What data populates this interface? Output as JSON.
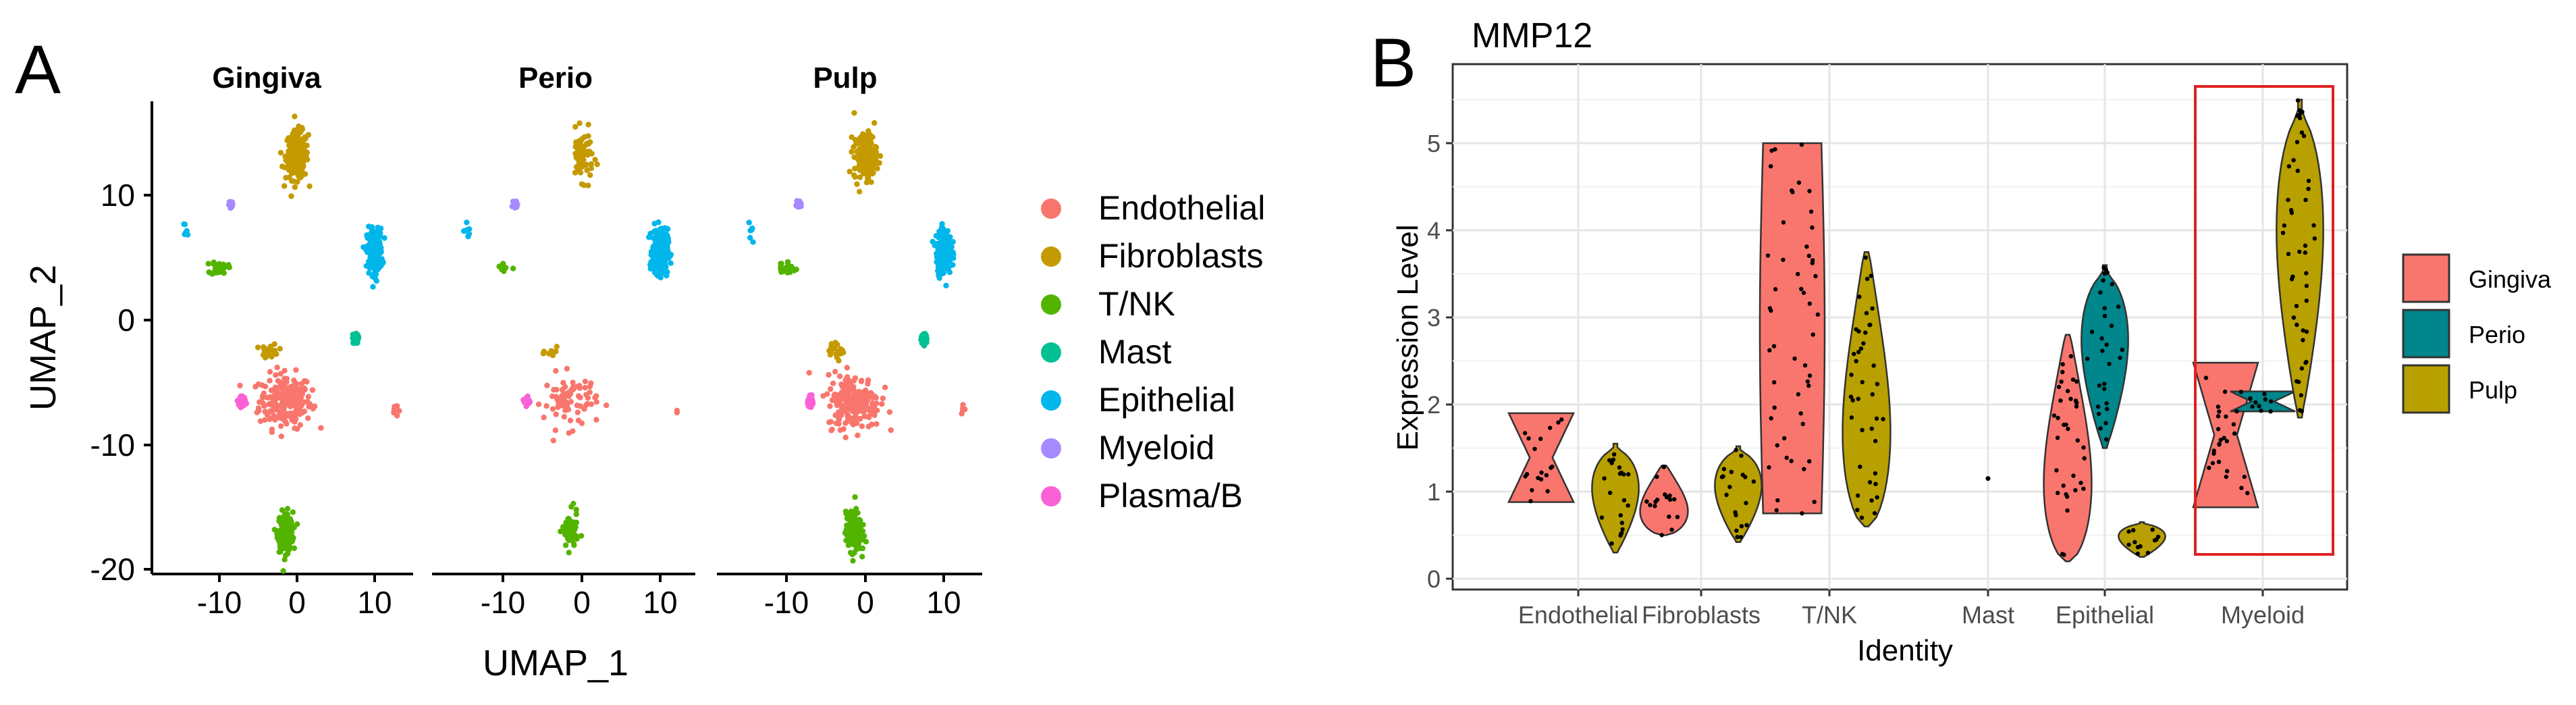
{
  "panel_a": {
    "letter": "A",
    "xlabel": "UMAP_1",
    "ylabel": "UMAP_2",
    "y_ticks": [
      "10",
      "0",
      "-10",
      "-20"
    ],
    "x_ticks": [
      "-10",
      "0",
      "10"
    ],
    "facets": [
      "Gingiva",
      "Perio",
      "Pulp"
    ],
    "legend": [
      {
        "label": "Endothelial",
        "color": "#F8766D"
      },
      {
        "label": "Fibroblasts",
        "color": "#C49A00"
      },
      {
        "label": "T/NK",
        "color": "#53B400"
      },
      {
        "label": "Mast",
        "color": "#00C094"
      },
      {
        "label": "Epithelial",
        "color": "#00B6EB"
      },
      {
        "label": "Myeloid",
        "color": "#A58AFF"
      },
      {
        "label": "Plasma/B",
        "color": "#FB61D7"
      }
    ]
  },
  "panel_b": {
    "letter": "B",
    "title": "MMP12",
    "xlabel": "Identity",
    "ylabel": "Expression Level",
    "legend": [
      {
        "label": "Gingiva",
        "color": "#F8766D"
      },
      {
        "label": "Perio",
        "color": "#00868B"
      },
      {
        "label": "Pulp",
        "color": "#B8A000"
      }
    ]
  },
  "chart_data": [
    {
      "type": "scatter",
      "xlabel": "UMAP_1",
      "ylabel": "UMAP_2",
      "xlim": [
        -18,
        15
      ],
      "ylim": [
        -21,
        17
      ],
      "facets": [
        "Gingiva",
        "Perio",
        "Pulp"
      ],
      "clusters": [
        {
          "name": "Endothelial",
          "center": [
            -1.5,
            -6.5
          ],
          "spread": [
            2.8,
            1.8
          ],
          "extra": [
            12.5,
            -7.2
          ],
          "density": {
            "Gingiva": 1.0,
            "Perio": 0.35,
            "Pulp": 1.0
          }
        },
        {
          "name": "Fibroblasts",
          "center": [
            0,
            13.2
          ],
          "spread": [
            1.2,
            1.6
          ],
          "secondary_center": [
            -3.5,
            -2.5
          ],
          "density": {
            "Gingiva": 1.0,
            "Perio": 0.3,
            "Pulp": 0.8
          }
        },
        {
          "name": "T/NK",
          "center": [
            -1.5,
            -17
          ],
          "spread": [
            0.8,
            1.3
          ],
          "secondary_center": [
            -10,
            4.2
          ],
          "density": {
            "Gingiva": 1.0,
            "Perio": 0.3,
            "Pulp": 1.0
          }
        },
        {
          "name": "Mast",
          "center": [
            7.5,
            -1.5
          ],
          "spread": [
            0.3,
            0.3
          ],
          "density": {
            "Gingiva": 1.0,
            "Perio": 0.0,
            "Pulp": 1.0
          }
        },
        {
          "name": "Epithelial",
          "center": [
            10,
            5.5
          ],
          "spread": [
            0.8,
            1.5
          ],
          "extra": [
            -14.5,
            7.2
          ],
          "density": {
            "Gingiva": 1.0,
            "Perio": 1.2,
            "Pulp": 1.0
          }
        },
        {
          "name": "Myeloid",
          "center": [
            -8.5,
            9.3
          ],
          "spread": [
            0.2,
            0.2
          ],
          "density": {
            "Gingiva": 0.3,
            "Perio": 0.6,
            "Pulp": 1.0
          }
        },
        {
          "name": "Plasma/B",
          "center": [
            -7,
            -6.5
          ],
          "spread": [
            0.3,
            0.3
          ],
          "density": {
            "Gingiva": 1.0,
            "Perio": 0.6,
            "Pulp": 1.0
          }
        }
      ]
    },
    {
      "type": "violin",
      "title": "MMP12",
      "xlabel": "Identity",
      "ylabel": "Expression Level",
      "ylim": [
        0,
        5.5
      ],
      "y_ticks": [
        0,
        1,
        2,
        3,
        4,
        5
      ],
      "categories": [
        "Endothelial",
        "Fibroblasts",
        "T/NK",
        "Mast",
        "Epithelial",
        "Myeloid"
      ],
      "groups": [
        "Gingiva",
        "Perio",
        "Pulp"
      ],
      "violins": [
        {
          "category": "Endothelial",
          "group": "Gingiva",
          "min": 0.88,
          "max": 1.9,
          "shape": "notch"
        },
        {
          "category": "Endothelial",
          "group": "Pulp",
          "min": 0.3,
          "max": 1.55,
          "shape": "top"
        },
        {
          "category": "Fibroblasts",
          "group": "Gingiva",
          "min": 0.5,
          "max": 1.3,
          "shape": "bottom"
        },
        {
          "category": "Fibroblasts",
          "group": "Pulp",
          "min": 0.42,
          "max": 1.52,
          "shape": "top"
        },
        {
          "category": "T/NK",
          "group": "Gingiva",
          "min": 0.75,
          "max": 5.0,
          "shape": "wide"
        },
        {
          "category": "T/NK",
          "group": "Pulp",
          "min": 0.6,
          "max": 3.75,
          "shape": "bottom"
        },
        {
          "category": "Mast",
          "group": "Gingiva",
          "min": 1.15,
          "max": 1.15,
          "shape": "point"
        },
        {
          "category": "Epithelial",
          "group": "Gingiva",
          "min": 0.2,
          "max": 2.8,
          "shape": "bottom"
        },
        {
          "category": "Epithelial",
          "group": "Perio",
          "min": 1.5,
          "max": 3.6,
          "shape": "top"
        },
        {
          "category": "Epithelial",
          "group": "Pulp",
          "min": 0.25,
          "max": 0.65,
          "shape": "top"
        },
        {
          "category": "Myeloid",
          "group": "Gingiva",
          "min": 0.82,
          "max": 2.48,
          "shape": "notch"
        },
        {
          "category": "Myeloid",
          "group": "Perio",
          "min": 1.92,
          "max": 2.15,
          "shape": "notch"
        },
        {
          "category": "Myeloid",
          "group": "Pulp",
          "min": 1.85,
          "max": 5.5,
          "shape": "top"
        }
      ],
      "highlight_category": "Myeloid"
    }
  ]
}
